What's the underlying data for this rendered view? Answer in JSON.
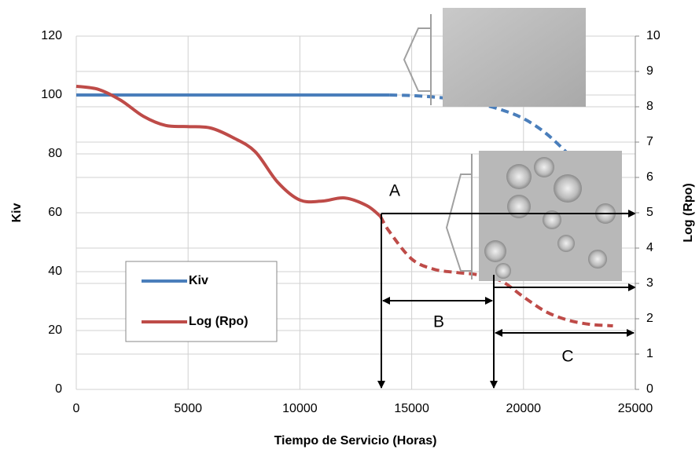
{
  "chart_data": {
    "type": "line",
    "x_label": "Tiempo de Servicio (Horas)",
    "y_label": "Kiv",
    "y2_label": "Log (Rpo)",
    "x": [
      0,
      1000,
      2000,
      3000,
      4000,
      5000,
      6000,
      7000,
      8000,
      9000,
      10000,
      11000,
      12000,
      13000,
      13600,
      14000,
      15000,
      16000,
      17000,
      18000,
      19000,
      20000,
      21000,
      22000,
      23000,
      24000
    ],
    "xlim": [
      0,
      25000
    ],
    "xticks": [
      0,
      5000,
      10000,
      15000,
      20000,
      25000
    ],
    "ylim": [
      0,
      120
    ],
    "yticks": [
      0,
      20,
      40,
      60,
      80,
      100,
      120
    ],
    "y2lim": [
      0,
      10
    ],
    "y2ticks": [
      0,
      1,
      2,
      3,
      4,
      5,
      6,
      7,
      8,
      9,
      10
    ],
    "grid": true,
    "series": [
      {
        "name": "Kiv",
        "color": "#4a7ebb",
        "dashed_from": 14000,
        "values": [
          100,
          100,
          100,
          100,
          100,
          100,
          100,
          100,
          100,
          100,
          100,
          100,
          100,
          100,
          100,
          100,
          99.8,
          99.3,
          98.5,
          97,
          95,
          92,
          87,
          80,
          null,
          null
        ]
      },
      {
        "name": "Log (Rpo)",
        "color": "#be4b48",
        "axis": "y2",
        "dashed_from": 13600,
        "values": [
          8.58,
          8.49,
          8.18,
          7.73,
          7.47,
          7.44,
          7.4,
          7.13,
          6.73,
          5.87,
          5.36,
          5.33,
          5.42,
          5.2,
          4.9,
          4.47,
          3.69,
          3.4,
          3.31,
          3.24,
          3.07,
          2.62,
          2.2,
          1.96,
          1.84,
          1.8
        ]
      }
    ],
    "annotations": [
      "A",
      "B",
      "C"
    ]
  }
}
